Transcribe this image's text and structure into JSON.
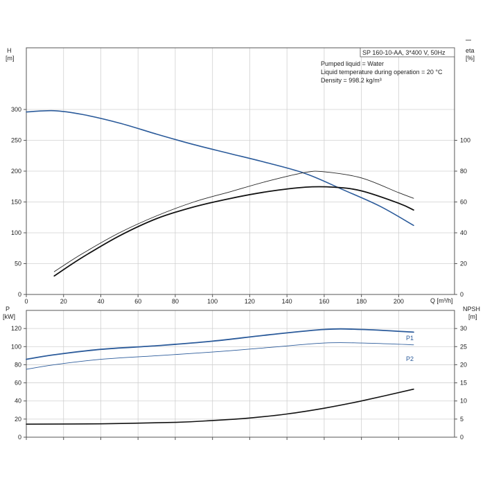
{
  "chart_data": [
    {
      "type": "line",
      "title_lines": [
        "SP 160-10-AA, 3*400 V, 50Hz",
        "Pumped liquid = Water",
        "Liquid temperature during operation = 20 °C",
        "Density = 998.2 kg/m³"
      ],
      "x_axis": {
        "label": "Q [m³/h]",
        "range": [
          0,
          230
        ],
        "ticks": [
          "0",
          "20",
          "40",
          "60",
          "80",
          "100",
          "120",
          "140",
          "160",
          "180",
          "200"
        ],
        "tick_values": [
          0,
          20,
          40,
          60,
          80,
          100,
          120,
          140,
          160,
          180,
          200
        ]
      },
      "y_axis": {
        "label_top": "H",
        "label_unit": "[m]",
        "range": [
          0,
          400
        ],
        "ticks": [
          "0",
          "50",
          "100",
          "150",
          "200",
          "250",
          "300"
        ],
        "tick_values": [
          0,
          50,
          100,
          150,
          200,
          250,
          300
        ]
      },
      "y2_axis": {
        "label_top": "eta",
        "label_unit": "[%]",
        "range": [
          0,
          160
        ],
        "ticks": [
          "0",
          "20",
          "40",
          "60",
          "80",
          "100"
        ],
        "tick_values": [
          0,
          20,
          40,
          60,
          80,
          100
        ]
      },
      "grid": true,
      "series": [
        {
          "axis": "y",
          "color": "#2a5a9a",
          "width": 1.6,
          "x": [
            0,
            15,
            30,
            50,
            70,
            90,
            110,
            130,
            150,
            170,
            190,
            208
          ],
          "y": [
            296,
            298,
            292,
            278,
            260,
            243,
            228,
            213,
            196,
            170,
            143,
            112
          ]
        },
        {
          "axis": "y2",
          "color": "#222222",
          "width": 0.9,
          "x": [
            15,
            30,
            50,
            70,
            90,
            110,
            130,
            150,
            160,
            180,
            200,
            208
          ],
          "y": [
            14.8,
            26.4,
            40,
            51,
            60,
            66.8,
            73.6,
            79.2,
            79.6,
            75.6,
            66,
            62.4
          ]
        },
        {
          "axis": "y2",
          "color": "#111111",
          "width": 1.8,
          "x": [
            15,
            30,
            50,
            70,
            90,
            110,
            130,
            150,
            165,
            180,
            200,
            208
          ],
          "y": [
            12,
            24,
            38,
            49.2,
            56.8,
            62.4,
            66.8,
            69.6,
            69.6,
            67.2,
            59.2,
            54.8
          ]
        }
      ]
    },
    {
      "type": "line",
      "x_axis": {
        "range": [
          0,
          230
        ],
        "ticks": [],
        "tick_values": [
          0,
          20,
          40,
          60,
          80,
          100,
          120,
          140,
          160,
          180,
          200
        ]
      },
      "y_axis": {
        "label_top": "P",
        "label_unit": "[kW]",
        "range": [
          0,
          140
        ],
        "ticks": [
          "0",
          "20",
          "40",
          "60",
          "80",
          "100",
          "120"
        ],
        "tick_values": [
          0,
          20,
          40,
          60,
          80,
          100,
          120
        ]
      },
      "y2_axis": {
        "label_top": "NPSH",
        "label_unit": "[m]",
        "range": [
          0,
          35
        ],
        "ticks": [
          "0",
          "5",
          "10",
          "15",
          "20",
          "25",
          "30"
        ],
        "tick_values": [
          0,
          5,
          10,
          15,
          20,
          25,
          30
        ]
      },
      "grid": true,
      "series": [
        {
          "name": "P1",
          "axis": "y",
          "color": "#2a5a9a",
          "width": 1.8,
          "x": [
            0,
            15,
            40,
            70,
            100,
            130,
            160,
            180,
            208
          ],
          "y": [
            86,
            91,
            97,
            101,
            106,
            113,
            119,
            119,
            116
          ]
        },
        {
          "name": "P2",
          "axis": "y",
          "color": "#2a5a9a",
          "width": 0.9,
          "x": [
            0,
            15,
            40,
            70,
            100,
            130,
            160,
            180,
            208
          ],
          "y": [
            75,
            80,
            86,
            90,
            94,
            99,
            104,
            104,
            102
          ]
        },
        {
          "axis": "y2",
          "color": "#111111",
          "width": 1.6,
          "x": [
            0,
            40,
            80,
            100,
            120,
            140,
            160,
            180,
            208
          ],
          "y": [
            3.6,
            3.7,
            4.1,
            4.6,
            5.3,
            6.4,
            8,
            10,
            13.25
          ]
        }
      ]
    }
  ]
}
